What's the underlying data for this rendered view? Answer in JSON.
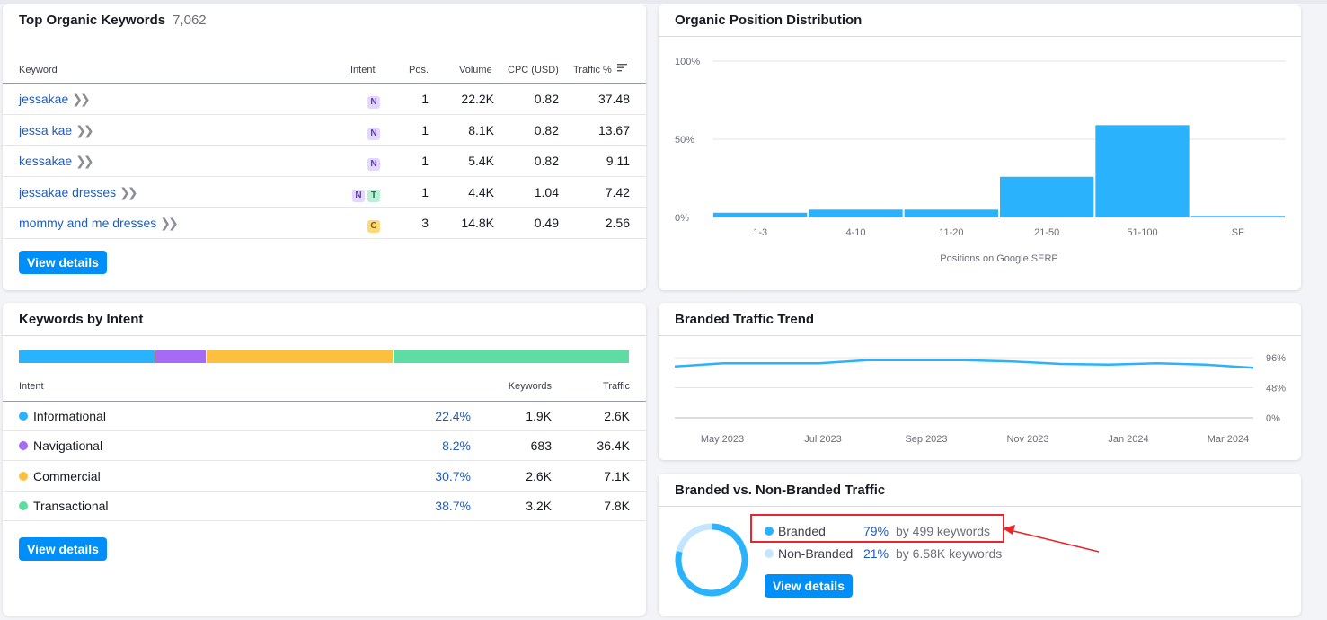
{
  "top_keywords": {
    "title": "Top Organic Keywords",
    "count": "7,062",
    "columns": [
      "Keyword",
      "Intent",
      "Pos.",
      "Volume",
      "CPC (USD)",
      "Traffic %"
    ],
    "rows": [
      {
        "keyword": "jessakae",
        "intents": [
          "N"
        ],
        "pos": "1",
        "volume": "22.2K",
        "cpc": "0.82",
        "traffic": "37.48"
      },
      {
        "keyword": "jessa kae",
        "intents": [
          "N"
        ],
        "pos": "1",
        "volume": "8.1K",
        "cpc": "0.82",
        "traffic": "13.67"
      },
      {
        "keyword": "kessakae",
        "intents": [
          "N"
        ],
        "pos": "1",
        "volume": "5.4K",
        "cpc": "0.82",
        "traffic": "9.11"
      },
      {
        "keyword": "jessakae dresses",
        "intents": [
          "N",
          "T"
        ],
        "pos": "1",
        "volume": "4.4K",
        "cpc": "1.04",
        "traffic": "7.42"
      },
      {
        "keyword": "mommy and me dresses",
        "intents": [
          "C"
        ],
        "pos": "3",
        "volume": "14.8K",
        "cpc": "0.49",
        "traffic": "2.56"
      }
    ],
    "button": "View details"
  },
  "position_distribution": {
    "title": "Organic Position Distribution",
    "chart_data": {
      "type": "bar",
      "categories": [
        "1-3",
        "4-10",
        "11-20",
        "21-50",
        "51-100",
        "SF"
      ],
      "values": [
        3,
        5,
        5,
        26,
        59,
        1
      ],
      "ylim": [
        0,
        100
      ],
      "yticks": [
        "0%",
        "50%",
        "100%"
      ],
      "xlabel": "Positions on Google SERP",
      "color": "#2bb2fd"
    }
  },
  "keywords_by_intent": {
    "title": "Keywords by Intent",
    "segments": [
      22.4,
      8.2,
      30.7,
      38.7
    ],
    "columns": [
      "Intent",
      "Keywords",
      "Traffic"
    ],
    "rows": [
      {
        "name": "Informational",
        "color": "#2bb2fd",
        "pct": "22.4%",
        "keywords": "1.9K",
        "traffic": "2.6K"
      },
      {
        "name": "Navigational",
        "color": "#a56bf5",
        "pct": "8.2%",
        "keywords": "683",
        "traffic": "36.4K"
      },
      {
        "name": "Commercial",
        "color": "#fdbf3f",
        "pct": "30.7%",
        "keywords": "2.6K",
        "traffic": "7.1K"
      },
      {
        "name": "Transactional",
        "color": "#5ddda3",
        "pct": "38.7%",
        "keywords": "3.2K",
        "traffic": "7.8K"
      }
    ],
    "button": "View details"
  },
  "branded_trend": {
    "title": "Branded Traffic Trend",
    "chart_data": {
      "type": "line",
      "x": [
        "2023-04",
        "2023-05",
        "2023-06",
        "2023-07",
        "2023-08",
        "2023-09",
        "2023-10",
        "2023-11",
        "2023-12",
        "2024-01",
        "2024-02",
        "2024-03",
        "2024-04"
      ],
      "xticks": [
        "May 2023",
        "Jul 2023",
        "Sep 2023",
        "Nov 2023",
        "Jan 2024",
        "Mar 2024"
      ],
      "values": [
        82,
        87,
        87,
        87,
        92,
        92,
        92,
        90,
        86,
        85,
        87,
        85,
        80
      ],
      "ylim": [
        0,
        96
      ],
      "yticks": [
        "0%",
        "48%",
        "96%"
      ],
      "color": "#2bb2fd"
    }
  },
  "branded_vs_nonbranded": {
    "title": "Branded vs. Non-Branded Traffic",
    "chart_data": {
      "type": "pie",
      "categories": [
        "Branded",
        "Non-Branded"
      ],
      "values": [
        79,
        21
      ],
      "colors": [
        "#2bb2fd",
        "#c4e6fd"
      ]
    },
    "legend": [
      {
        "label": "Branded",
        "pct": "79%",
        "detail": "by 499 keywords",
        "color": "#2bb2fd"
      },
      {
        "label": "Non-Branded",
        "pct": "21%",
        "detail": "by 6.58K keywords",
        "color": "#c4e6fd"
      }
    ],
    "button": "View details",
    "highlight_color": "#e8262b"
  }
}
